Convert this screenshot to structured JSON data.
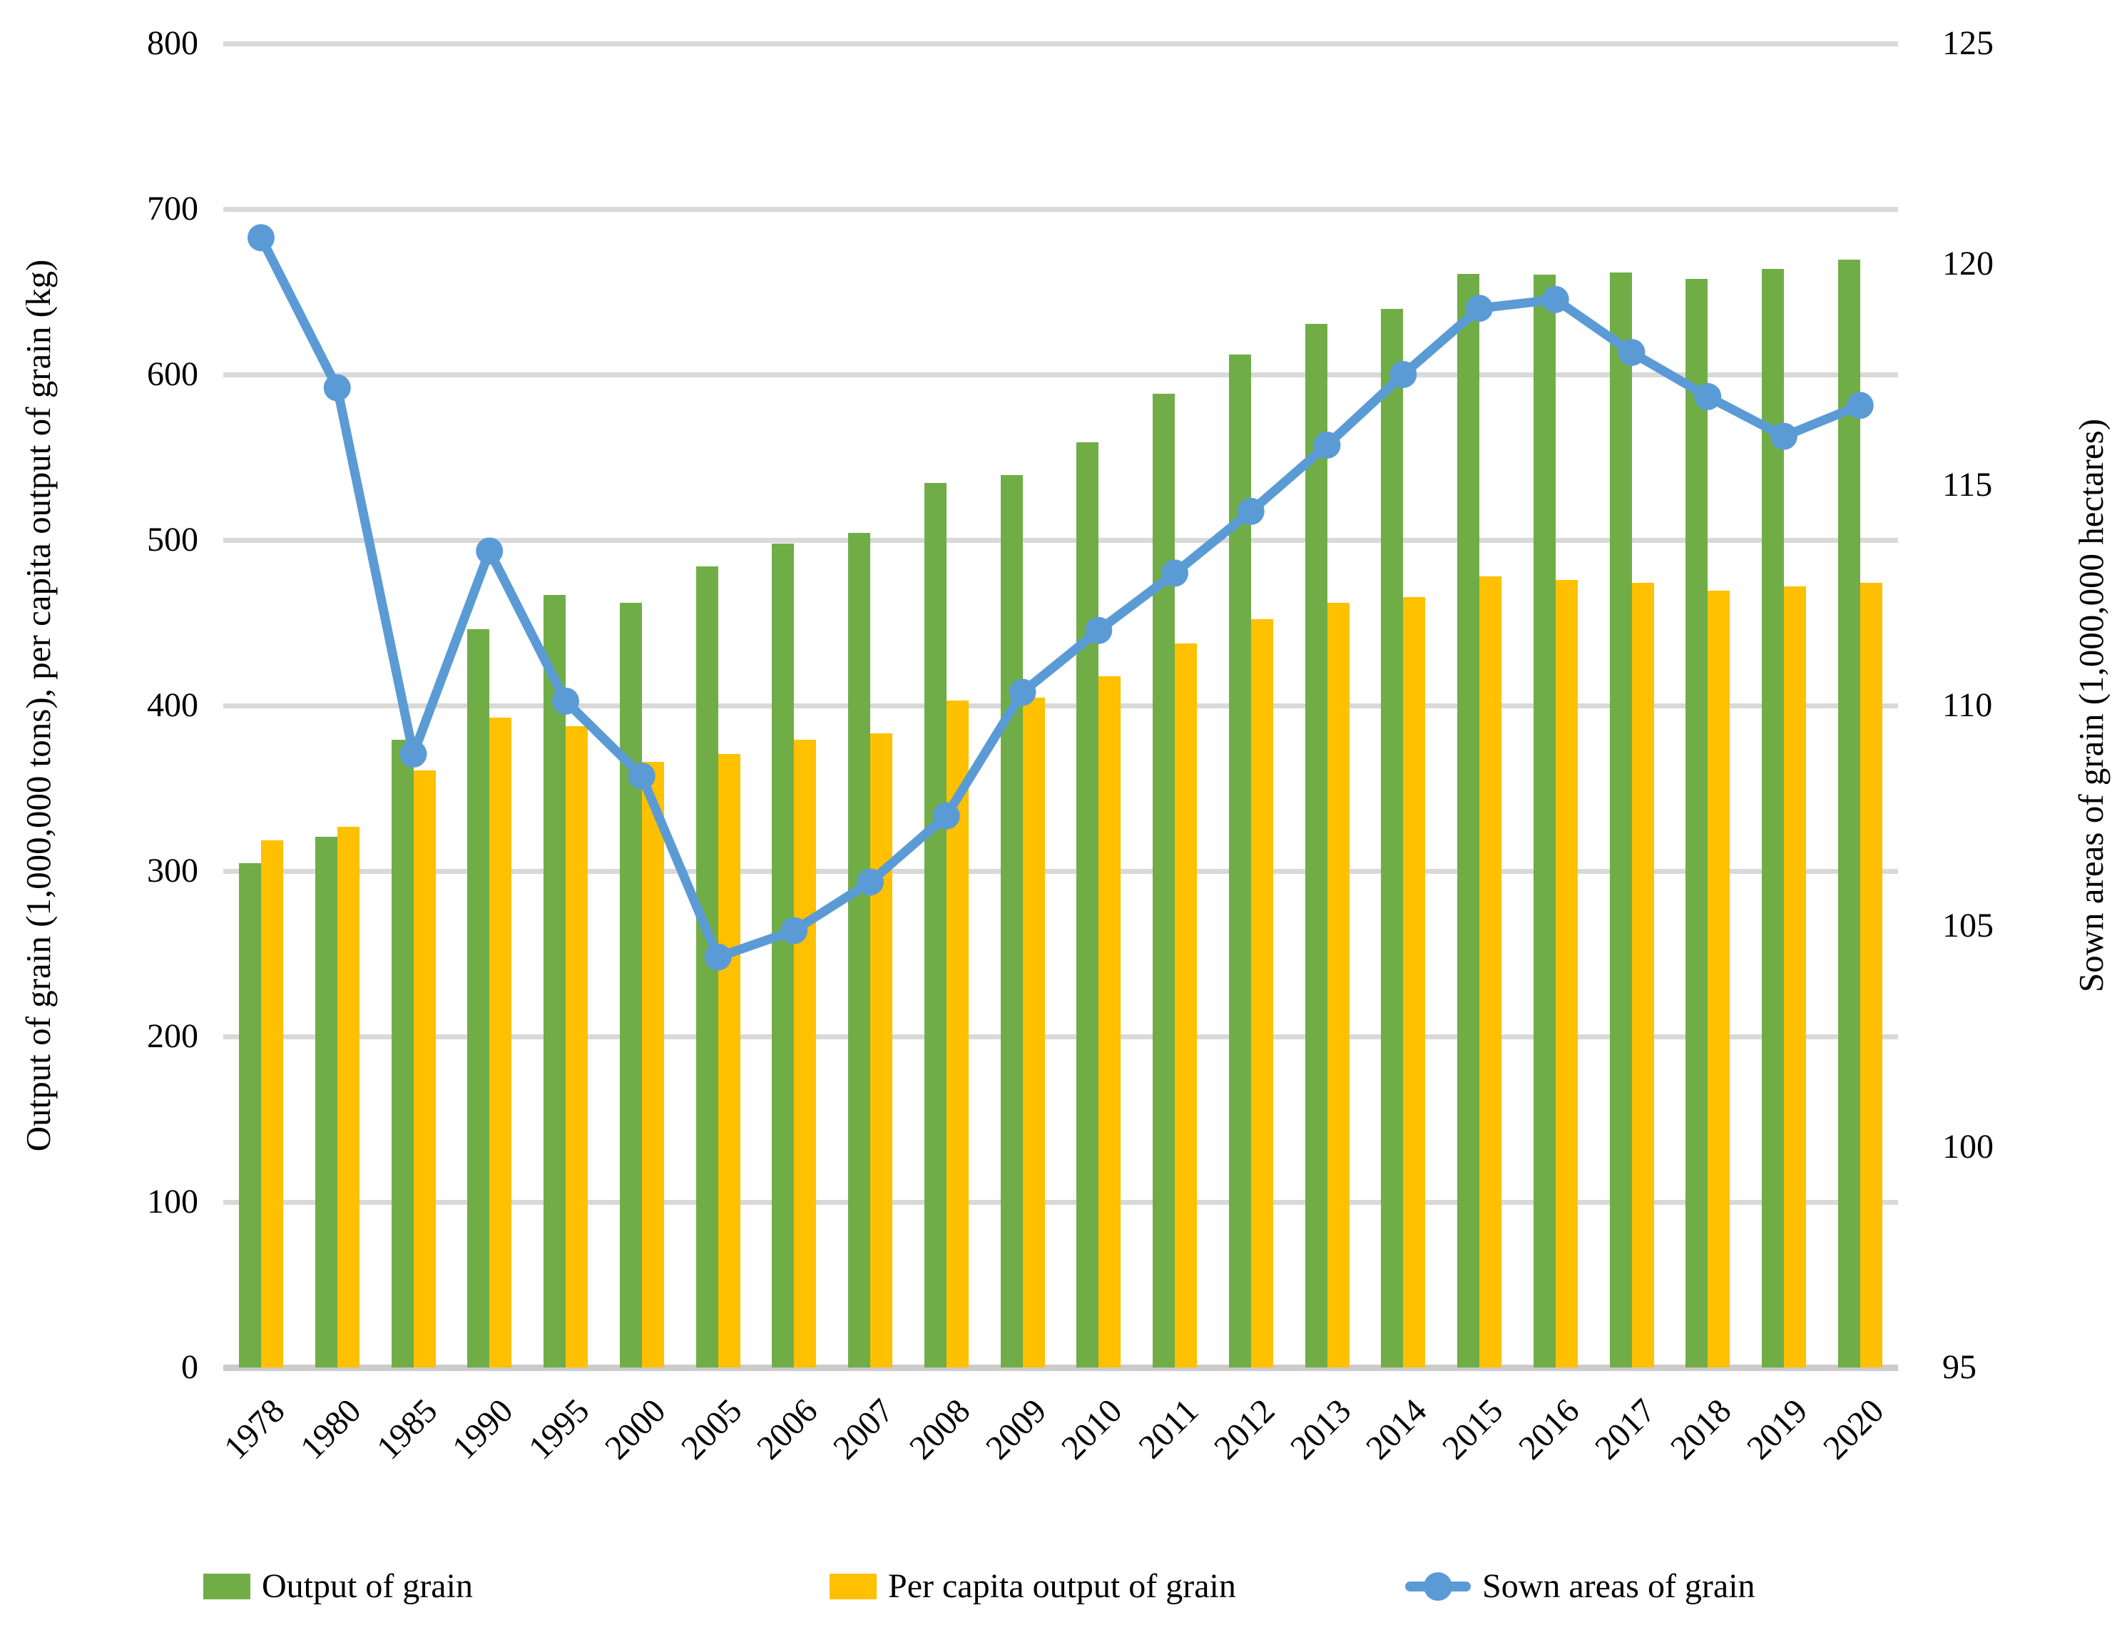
{
  "figure": {
    "background": "#FFFFFF"
  },
  "colors": {
    "output_bar": "#70AD47",
    "per_capita_bar": "#FFC000",
    "sown_line": "#5B9BD5",
    "gridline": "#D9D9D9",
    "zero_axis_line": "#CCCACA",
    "text": "#000000"
  },
  "left_axis": {
    "title": "Output of grain (1,000,000 tons), per capita output of grain (kg)",
    "min": 0,
    "max": 800,
    "tick_step": 100,
    "ticks": [
      0,
      100,
      200,
      300,
      400,
      500,
      600,
      700,
      800
    ]
  },
  "right_axis": {
    "title": "Sown areas of grain (1,000,000 hectares)",
    "min": 95,
    "max": 125,
    "tick_step": 5,
    "ticks": [
      95,
      100,
      105,
      110,
      115,
      120,
      125
    ]
  },
  "chart_data": {
    "type": "combo",
    "grid": "horizontal-left-ticks-only",
    "legend_position": "bottom",
    "categories": [
      1978,
      1980,
      1985,
      1990,
      1995,
      2000,
      2005,
      2006,
      2007,
      2008,
      2009,
      2010,
      2011,
      2012,
      2013,
      2014,
      2015,
      2016,
      2017,
      2018,
      2019,
      2020
    ],
    "series": [
      {
        "name": "Output of grain",
        "type": "bar",
        "axis": "left",
        "unit": "1,000,000 tons",
        "color": "#70AD47",
        "values": [
          304.8,
          320.6,
          379.1,
          446.2,
          466.6,
          462.2,
          484.0,
          498.0,
          504.3,
          534.4,
          539.4,
          559.1,
          588.5,
          612.2,
          630.5,
          639.7,
          660.6,
          660.4,
          661.6,
          657.9,
          663.8,
          669.5
        ]
      },
      {
        "name": "Per capita output of grain",
        "type": "bar",
        "axis": "left",
        "unit": "kg",
        "color": "#FFC000",
        "values": [
          318.7,
          326.6,
          360.8,
          392.8,
          387.4,
          365.8,
          370.7,
          379.3,
          383.2,
          402.9,
          404.7,
          417.7,
          437.7,
          452.2,
          462.1,
          465.5,
          478.0,
          475.9,
          474.1,
          469.2,
          472.1,
          474.1
        ]
      },
      {
        "name": "Sown areas of grain",
        "type": "line",
        "axis": "right",
        "unit": "1,000,000 hectares",
        "color": "#5B9BD5",
        "marker": "circle",
        "values": [
          120.6,
          117.2,
          108.9,
          113.5,
          110.1,
          108.4,
          104.3,
          104.9,
          106.0,
          107.5,
          110.3,
          111.7,
          113.0,
          114.4,
          115.9,
          117.5,
          119.0,
          119.2,
          118.0,
          117.0,
          116.1,
          116.8
        ]
      }
    ],
    "ylim_left": [
      0,
      800
    ],
    "ylim_right": [
      95,
      125
    ]
  }
}
